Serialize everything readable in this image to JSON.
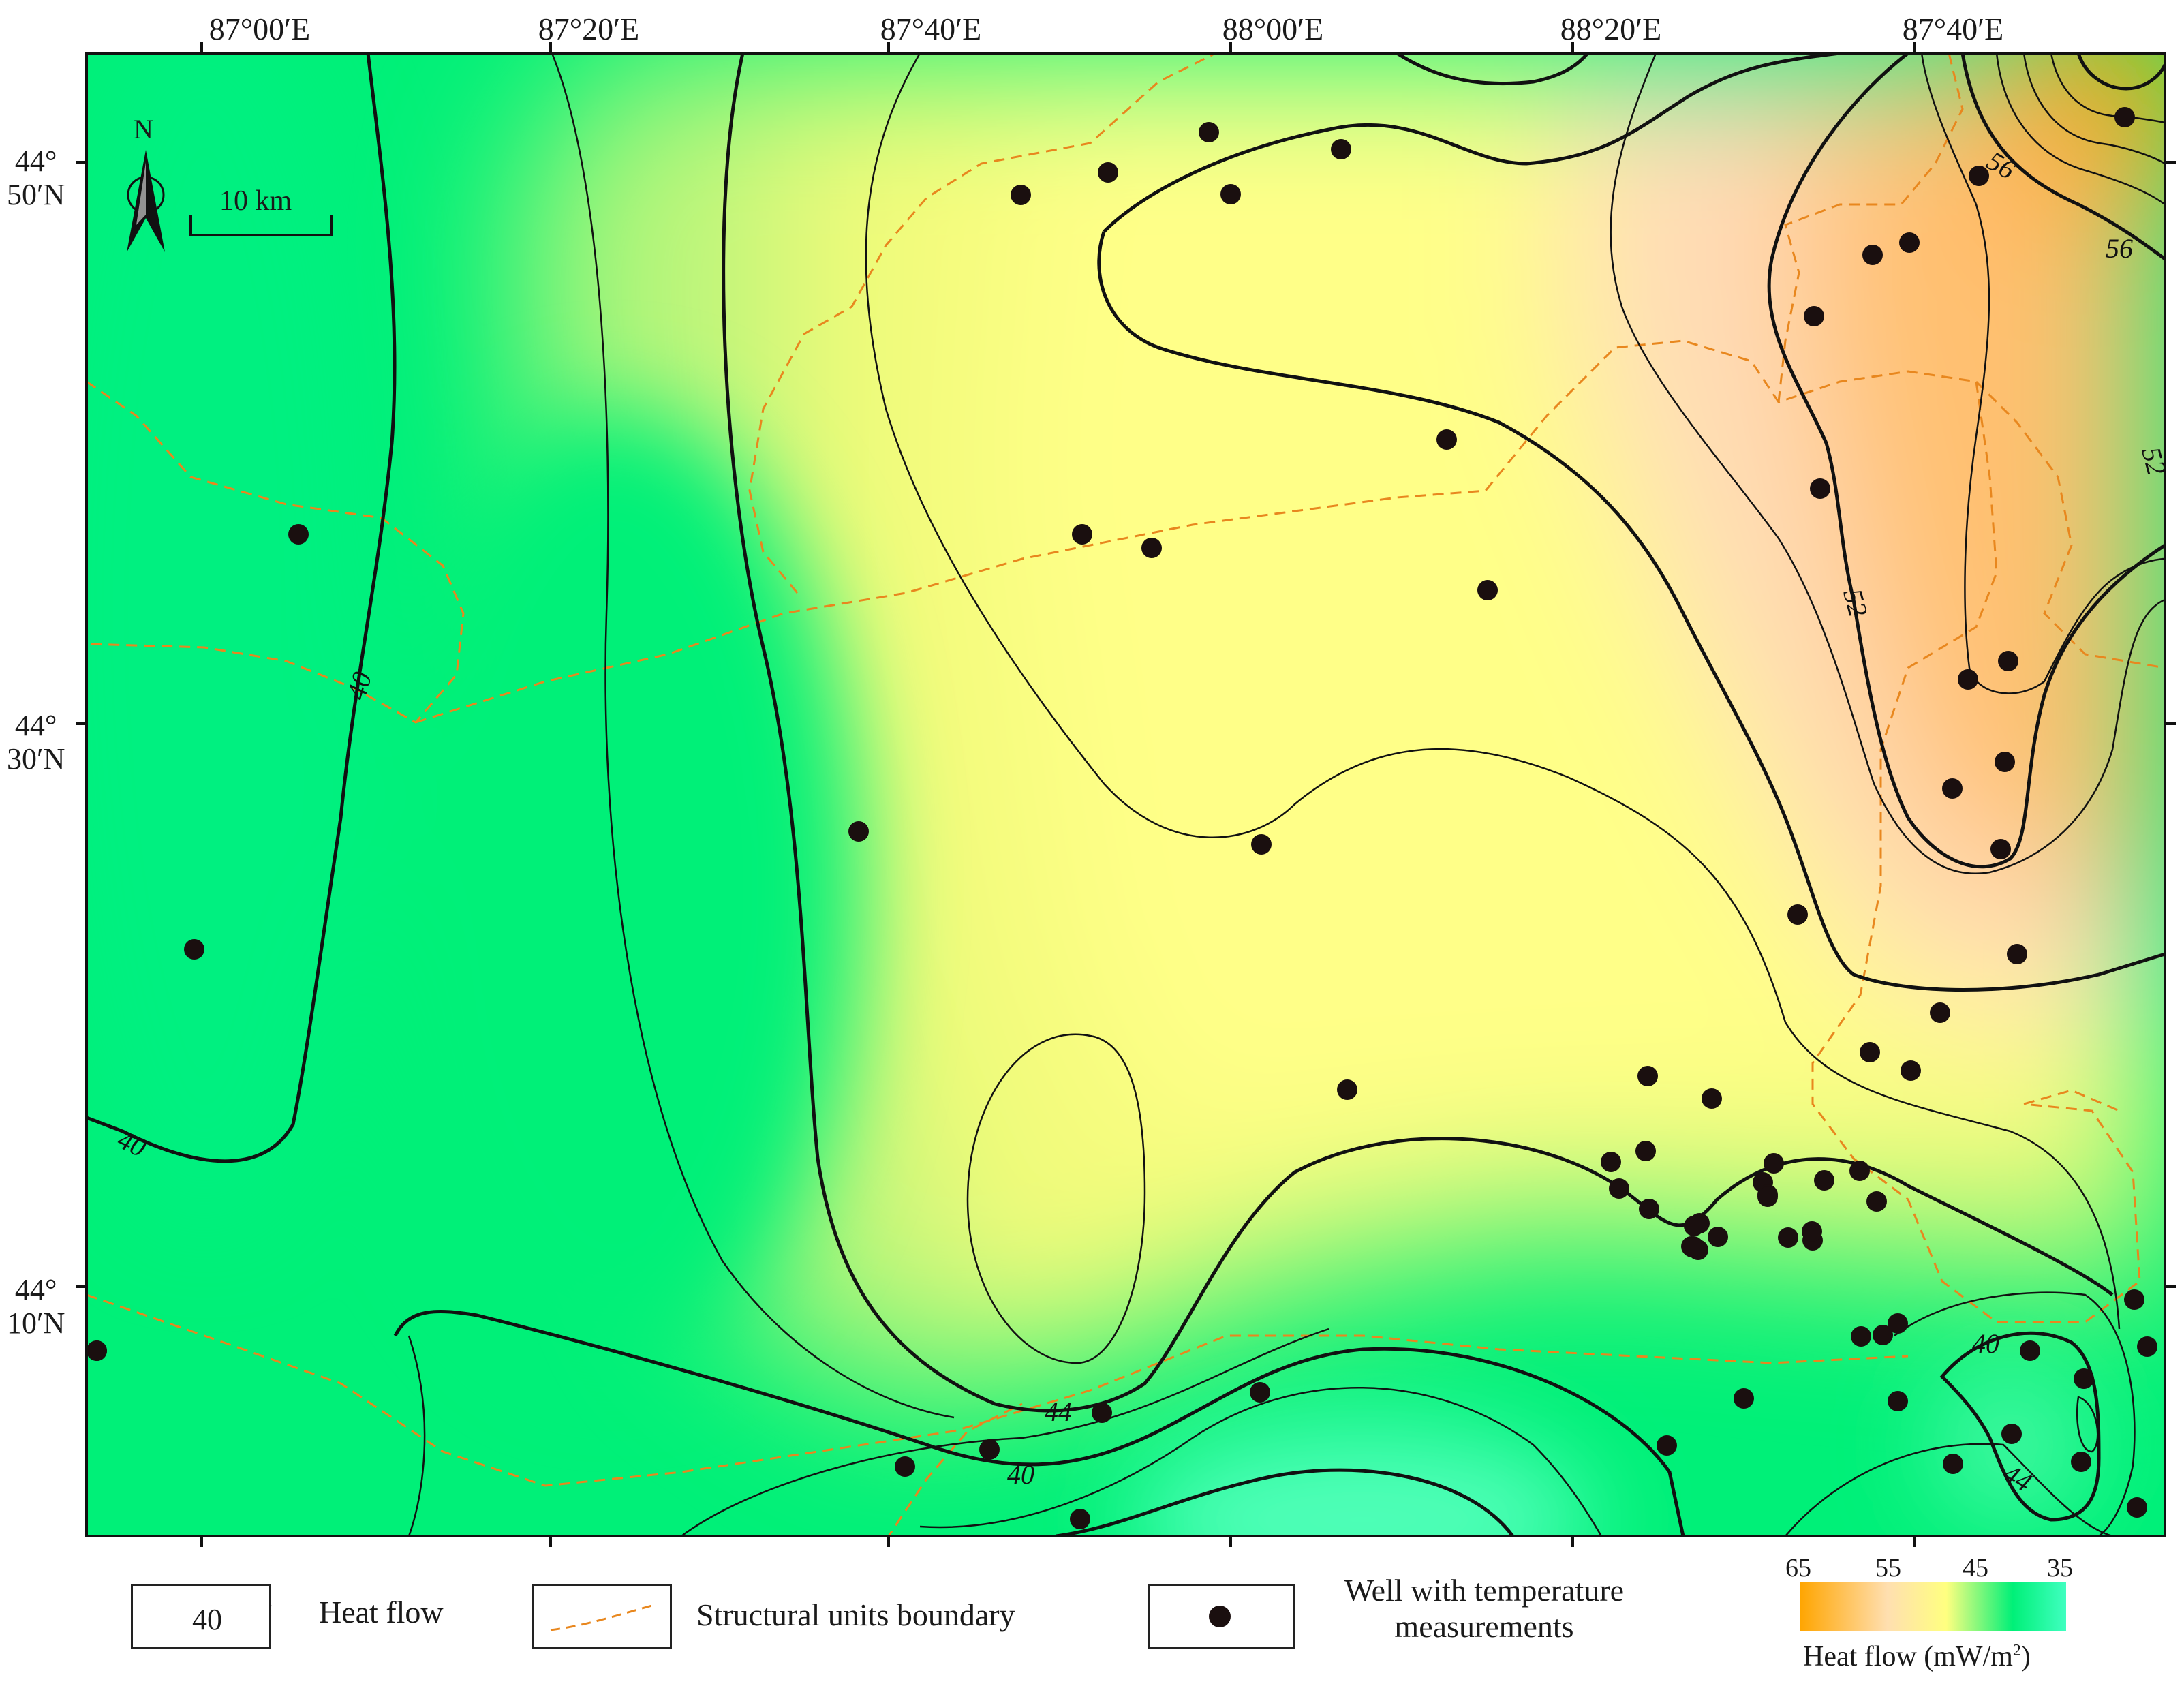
{
  "map": {
    "longitude_labels": [
      "87°00′E",
      "87°20′E",
      "87°40′E",
      "88°00′E",
      "88°20′E",
      "87°40′E"
    ],
    "latitude_labels": [
      {
        "deg": "44°",
        "min": "50′N"
      },
      {
        "deg": "44°",
        "min": "30′N"
      },
      {
        "deg": "44°",
        "min": "10′N"
      }
    ],
    "north_label": "N",
    "scale_label": "10 km",
    "contour_labels": [
      "40",
      "40",
      "40",
      "44",
      "40",
      "44",
      "40",
      "52",
      "52",
      "56",
      "56"
    ],
    "colors": {
      "high_heat": "#ffa500",
      "mid_heat": "#ffff80",
      "low_heat": "#00f078",
      "contour": "#111111",
      "boundary": "#e8871e",
      "well": "#1a0f0f"
    }
  },
  "legend": {
    "heat_flow_sample": "40",
    "heat_flow_label": "Heat flow",
    "boundary_label": "Structural units boundary",
    "well_label_line1": "Well with temperature",
    "well_label_line2": "measurements",
    "colorbar_ticks": [
      "65",
      "55",
      "45",
      "35"
    ],
    "colorbar_title": "Heat flow (mW/m",
    "colorbar_unit_sup": "2",
    "colorbar_title_end": ")"
  }
}
